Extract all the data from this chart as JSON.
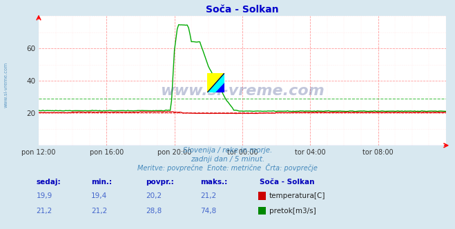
{
  "title": "Soča - Solkan",
  "title_color": "#0000cc",
  "bg_color": "#d8e8f0",
  "plot_bg_color": "#ffffff",
  "xticklabels": [
    "pon 12:00",
    "pon 16:00",
    "pon 20:00",
    "tor 00:00",
    "tor 04:00",
    "tor 08:00"
  ],
  "xtick_positions": [
    0,
    4,
    8,
    12,
    16,
    20
  ],
  "yticks": [
    20,
    40,
    60
  ],
  "ylim_min": 0,
  "ylim_max": 80,
  "xlim_min": 0,
  "xlim_max": 24,
  "temp_color": "#dd0000",
  "flow_color": "#00aa00",
  "temp_avg": 20.2,
  "flow_avg_val": 28.8,
  "subtitle1": "Slovenija / reke in morje.",
  "subtitle2": "zadnji dan / 5 minut.",
  "subtitle3": "Meritve: povprečne  Enote: metrične  Črta: povprečje",
  "subtitle_color": "#4488bb",
  "watermark": "www.si-vreme.com",
  "watermark_color": "#334488",
  "left_label": "www.si-vreme.com",
  "left_label_color": "#4488bb",
  "table_headers": [
    "sedaj:",
    "min.:",
    "povpr.:",
    "maks.:",
    "Soča - Solkan"
  ],
  "table_header_color": "#0000bb",
  "table_data_color": "#4466cc",
  "temp_row": [
    "19,9",
    "19,4",
    "20,2",
    "21,2"
  ],
  "flow_row": [
    "21,2",
    "21,2",
    "28,8",
    "74,8"
  ],
  "temp_label": "temperatura[C]",
  "flow_label": "pretok[m3/s]",
  "grid_major_color": "#ff9999",
  "grid_minor_color": "#ffdddd"
}
